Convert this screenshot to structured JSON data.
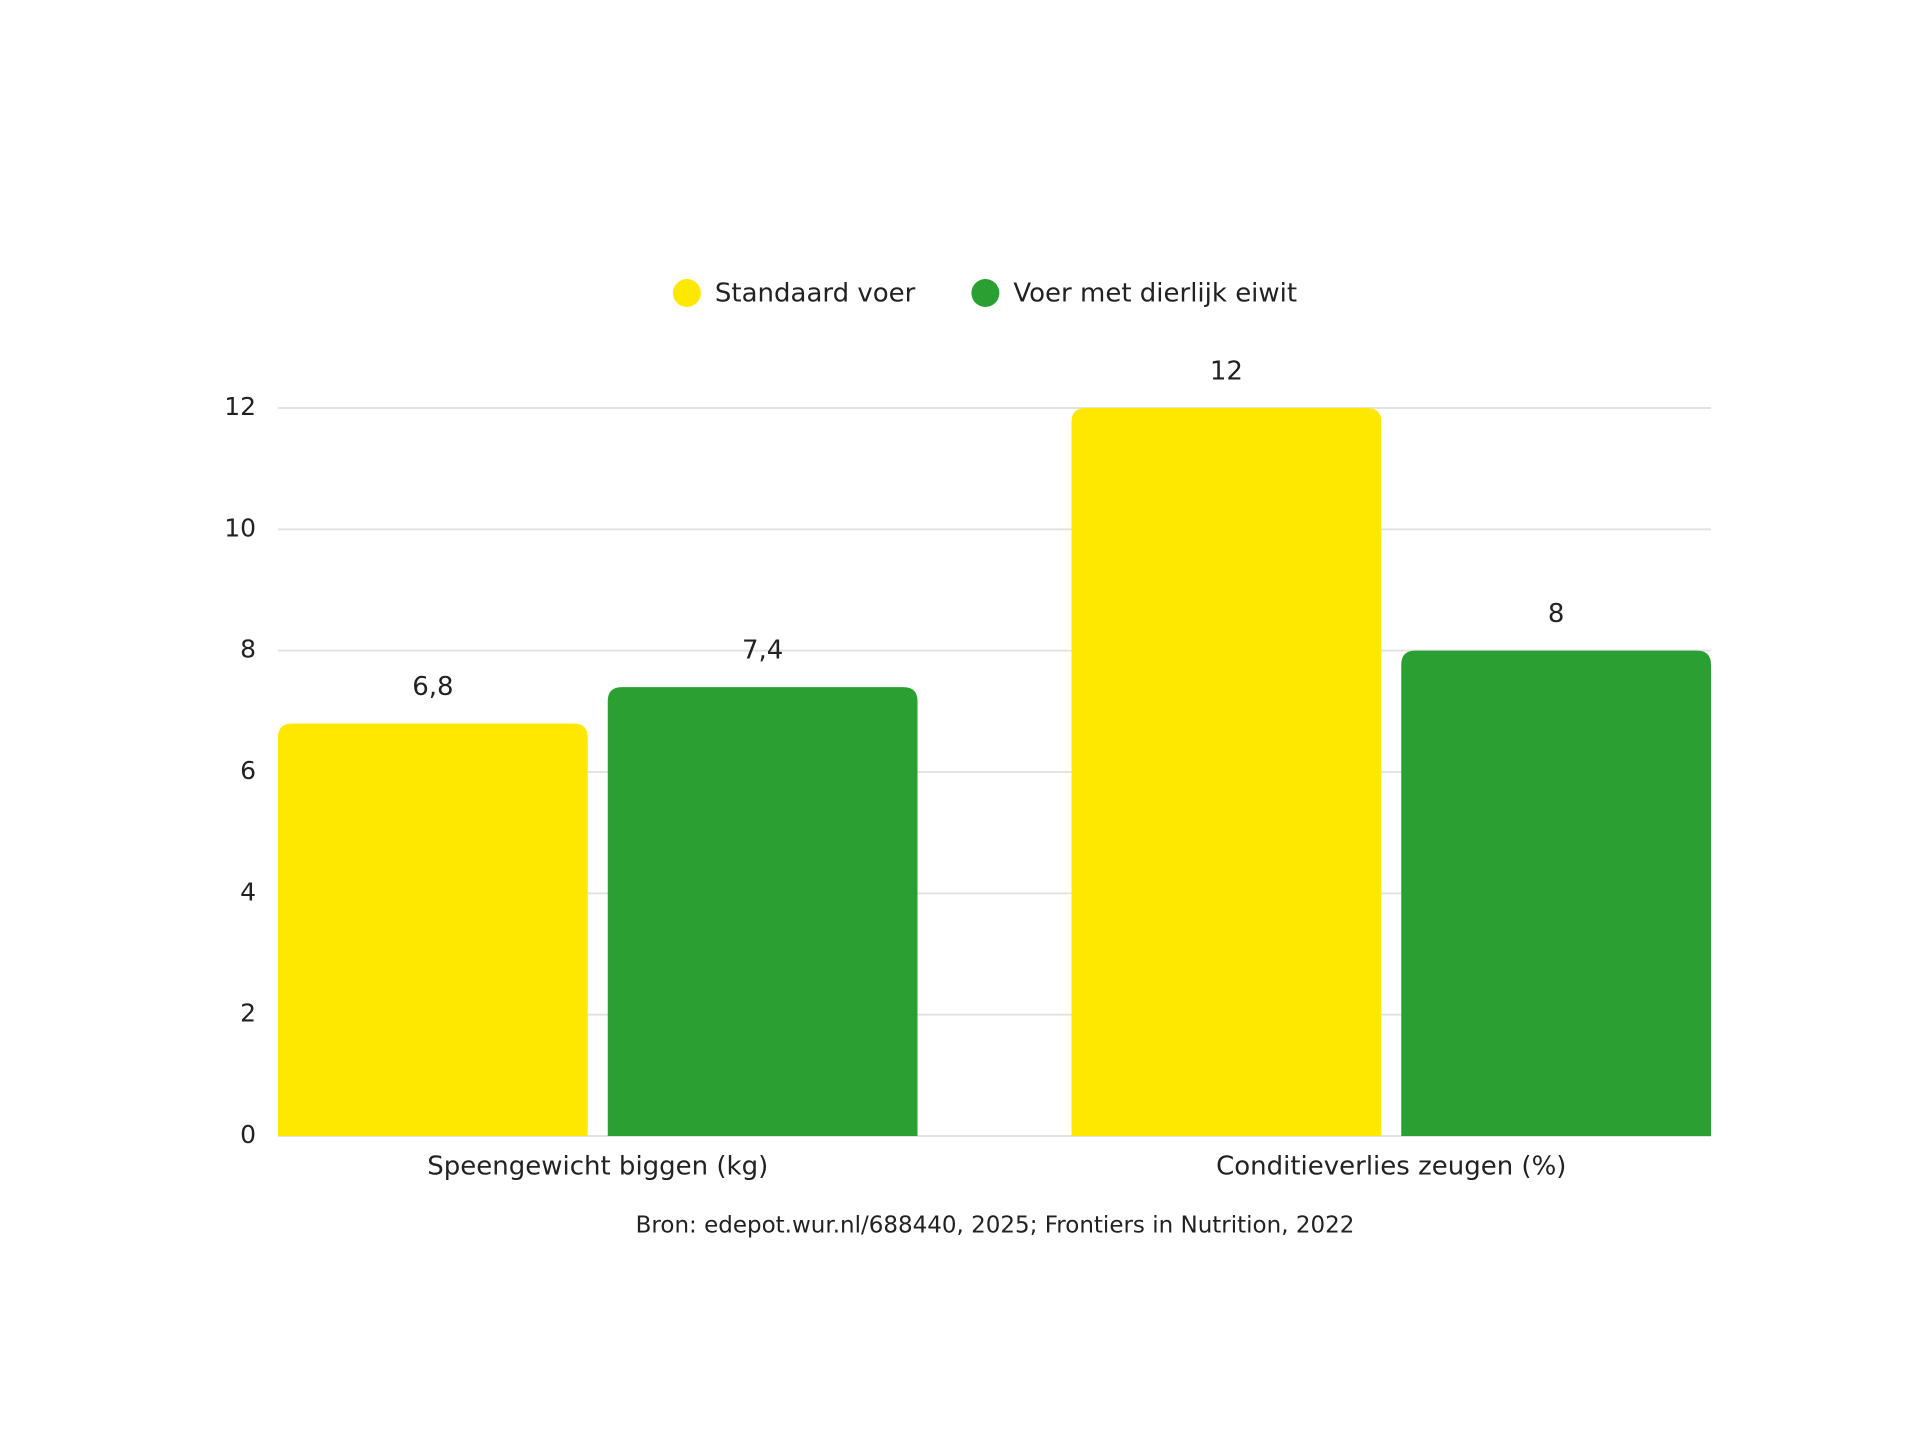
{
  "chart_data": {
    "type": "bar",
    "categories": [
      "Speengewicht biggen (kg)",
      "Conditieverlies zeugen (%)"
    ],
    "series": [
      {
        "name": "Standaard voer",
        "color": "#ffe800",
        "values": [
          6.8,
          12
        ],
        "value_labels": [
          "6,8",
          "12"
        ]
      },
      {
        "name": "Voer met dierlijk eiwit",
        "color": "#29a031",
        "values": [
          7.4,
          8
        ],
        "value_labels": [
          "7,4",
          "8"
        ]
      }
    ],
    "ylim": [
      0,
      12
    ],
    "yticks": [
      0,
      2,
      4,
      6,
      8,
      10,
      12
    ],
    "grid": true,
    "legend": "top",
    "note": "Bron: edepot.wur.nl/688440, 2025; Frontiers in Nutrition, 2022"
  }
}
